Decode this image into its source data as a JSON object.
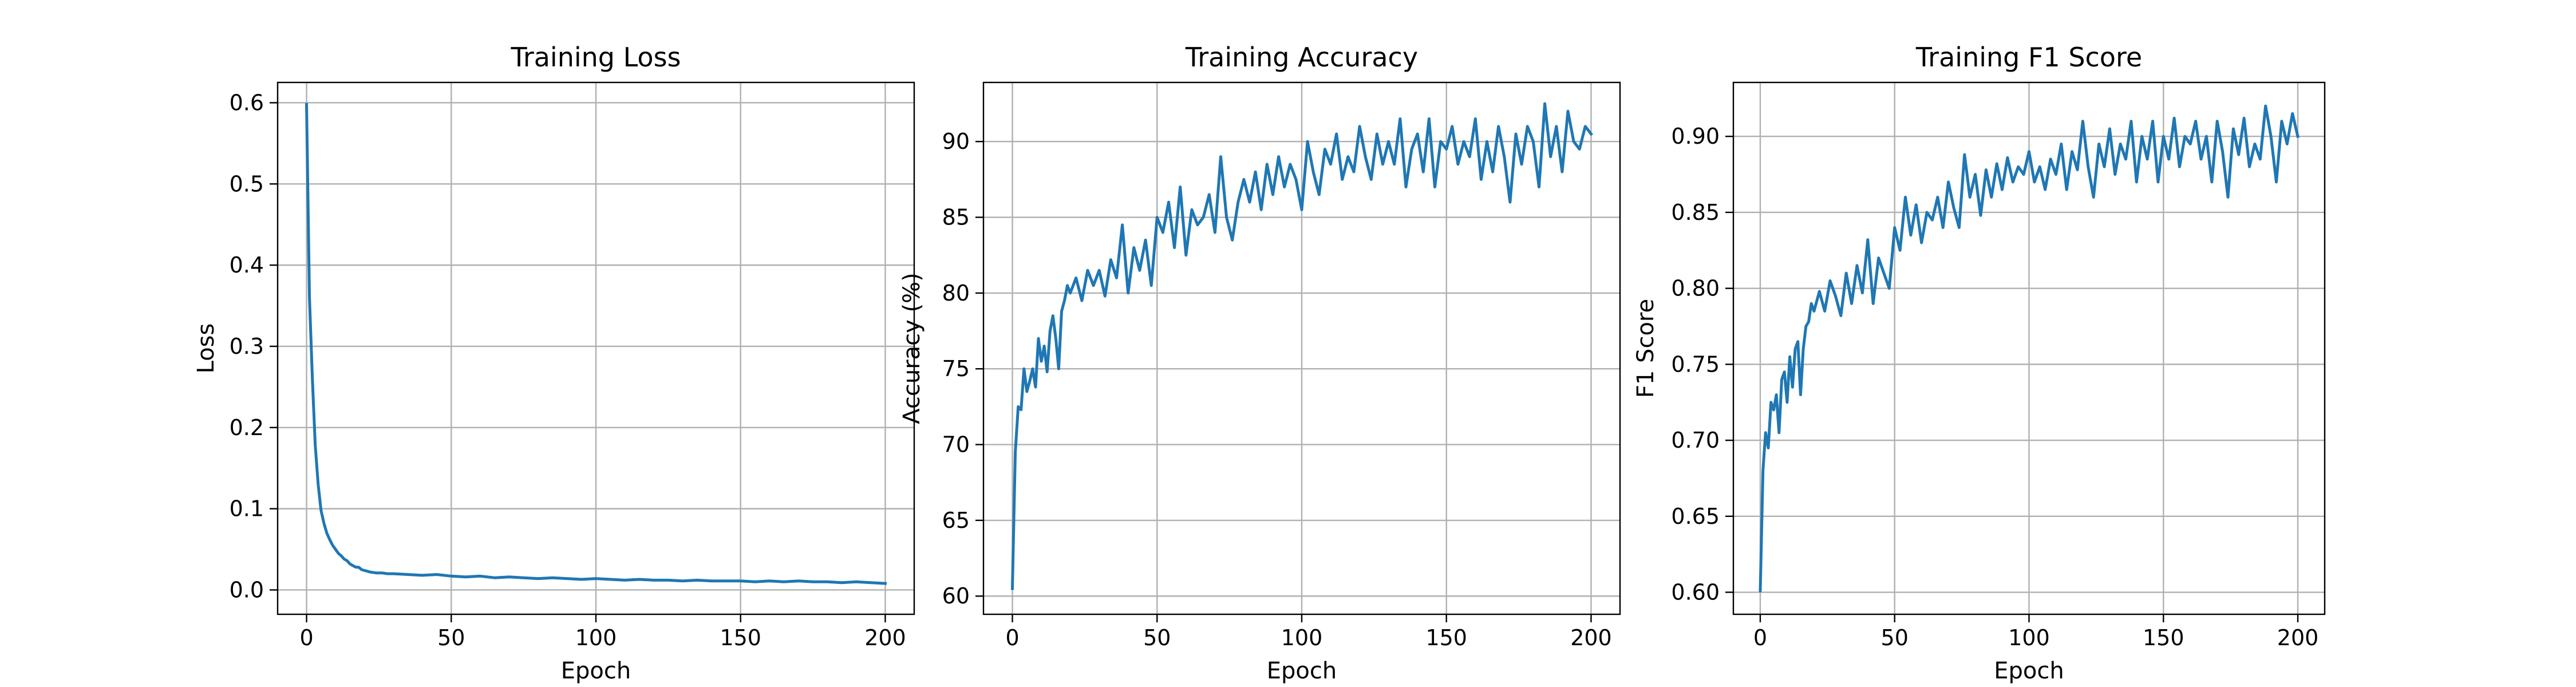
{
  "figure": {
    "background": "#ffffff",
    "line_color": "#1f77b4",
    "grid_color": "#b0b0b0"
  },
  "chart_data": [
    {
      "type": "line",
      "title": "Training Loss",
      "xlabel": "Epoch",
      "ylabel": "Loss",
      "xlim": [
        -10,
        210
      ],
      "ylim": [
        -0.03,
        0.625
      ],
      "xticks": [
        0,
        50,
        100,
        150,
        200
      ],
      "yticks": [
        0.0,
        0.1,
        0.2,
        0.3,
        0.4,
        0.5,
        0.6
      ],
      "ytick_decimals": 1,
      "grid": true,
      "series": [
        {
          "x": [
            0,
            1,
            2,
            3,
            4,
            5,
            6,
            7,
            8,
            9,
            10,
            11,
            12,
            13,
            14,
            15,
            16,
            17,
            18,
            19,
            20,
            22,
            24,
            26,
            28,
            30,
            35,
            40,
            45,
            50,
            55,
            60,
            65,
            70,
            75,
            80,
            85,
            90,
            95,
            100,
            105,
            110,
            115,
            120,
            125,
            130,
            135,
            140,
            145,
            150,
            155,
            160,
            165,
            170,
            175,
            180,
            185,
            190,
            195,
            200
          ],
          "y": [
            0.598,
            0.36,
            0.26,
            0.178,
            0.13,
            0.098,
            0.082,
            0.07,
            0.062,
            0.055,
            0.05,
            0.045,
            0.042,
            0.038,
            0.036,
            0.032,
            0.03,
            0.028,
            0.028,
            0.025,
            0.024,
            0.022,
            0.021,
            0.021,
            0.02,
            0.02,
            0.019,
            0.018,
            0.019,
            0.017,
            0.016,
            0.017,
            0.015,
            0.016,
            0.015,
            0.014,
            0.015,
            0.014,
            0.013,
            0.014,
            0.013,
            0.012,
            0.013,
            0.012,
            0.012,
            0.011,
            0.012,
            0.011,
            0.011,
            0.011,
            0.01,
            0.011,
            0.01,
            0.011,
            0.01,
            0.01,
            0.009,
            0.01,
            0.009,
            0.008
          ]
        }
      ]
    },
    {
      "type": "line",
      "title": "Training Accuracy",
      "xlabel": "Epoch",
      "ylabel": "Accuracy (%)",
      "xlim": [
        -10,
        210
      ],
      "ylim": [
        58.8,
        93.9
      ],
      "xticks": [
        0,
        50,
        100,
        150,
        200
      ],
      "yticks": [
        60,
        65,
        70,
        75,
        80,
        85,
        90
      ],
      "ytick_decimals": 0,
      "grid": true,
      "series": [
        {
          "x": [
            0,
            1,
            2,
            3,
            4,
            5,
            6,
            7,
            8,
            9,
            10,
            11,
            12,
            13,
            14,
            15,
            16,
            17,
            18,
            19,
            20,
            22,
            24,
            26,
            28,
            30,
            32,
            34,
            36,
            38,
            40,
            42,
            44,
            46,
            48,
            50,
            52,
            54,
            56,
            58,
            60,
            62,
            64,
            66,
            68,
            70,
            72,
            74,
            76,
            78,
            80,
            82,
            84,
            86,
            88,
            90,
            92,
            94,
            96,
            98,
            100,
            102,
            104,
            106,
            108,
            110,
            112,
            114,
            116,
            118,
            120,
            122,
            124,
            126,
            128,
            130,
            132,
            134,
            136,
            138,
            140,
            142,
            144,
            146,
            148,
            150,
            152,
            154,
            156,
            158,
            160,
            162,
            164,
            166,
            168,
            170,
            172,
            174,
            176,
            178,
            180,
            182,
            184,
            186,
            188,
            190,
            192,
            194,
            196,
            198,
            200
          ],
          "y": [
            60.5,
            69.5,
            72.5,
            72.3,
            75.0,
            73.5,
            74.2,
            75.0,
            73.8,
            77.0,
            75.5,
            76.5,
            74.8,
            77.5,
            78.5,
            77.0,
            75.0,
            78.8,
            79.5,
            80.5,
            80.0,
            81.0,
            79.5,
            81.5,
            80.5,
            81.5,
            79.8,
            82.2,
            81.0,
            84.5,
            80.0,
            83.0,
            81.5,
            83.5,
            80.5,
            85.0,
            84.0,
            86.0,
            83.0,
            87.0,
            82.5,
            85.5,
            84.5,
            85.0,
            86.5,
            84.0,
            89.0,
            85.0,
            83.5,
            86.0,
            87.5,
            86.0,
            88.0,
            85.5,
            88.5,
            86.5,
            89.0,
            87.0,
            88.5,
            87.5,
            85.5,
            90.0,
            88.0,
            86.5,
            89.5,
            88.5,
            90.5,
            87.5,
            89.0,
            88.0,
            91.0,
            89.0,
            87.5,
            90.5,
            88.5,
            90.0,
            88.5,
            91.5,
            87.0,
            89.5,
            90.5,
            88.0,
            91.5,
            87.0,
            90.0,
            89.5,
            91.0,
            88.5,
            90.0,
            89.0,
            91.5,
            87.5,
            90.0,
            88.0,
            91.0,
            89.0,
            86.0,
            90.5,
            88.5,
            91.0,
            90.0,
            87.0,
            92.5,
            89.0,
            91.0,
            88.0,
            92.0,
            90.0,
            89.5,
            91.0,
            90.5
          ]
        }
      ]
    },
    {
      "type": "line",
      "title": "Training F1 Score",
      "xlabel": "Epoch",
      "ylabel": "F1 Score",
      "xlim": [
        -10,
        210
      ],
      "ylim": [
        0.5855,
        0.9355
      ],
      "xticks": [
        0,
        50,
        100,
        150,
        200
      ],
      "yticks": [
        0.6,
        0.65,
        0.7,
        0.75,
        0.8,
        0.85,
        0.9
      ],
      "ytick_decimals": 2,
      "grid": true,
      "series": [
        {
          "x": [
            0,
            1,
            2,
            3,
            4,
            5,
            6,
            7,
            8,
            9,
            10,
            11,
            12,
            13,
            14,
            15,
            16,
            17,
            18,
            19,
            20,
            22,
            24,
            26,
            28,
            30,
            32,
            34,
            36,
            38,
            40,
            42,
            44,
            46,
            48,
            50,
            52,
            54,
            56,
            58,
            60,
            62,
            64,
            66,
            68,
            70,
            72,
            74,
            76,
            78,
            80,
            82,
            84,
            86,
            88,
            90,
            92,
            94,
            96,
            98,
            100,
            102,
            104,
            106,
            108,
            110,
            112,
            114,
            116,
            118,
            120,
            122,
            124,
            126,
            128,
            130,
            132,
            134,
            136,
            138,
            140,
            142,
            144,
            146,
            148,
            150,
            152,
            154,
            156,
            158,
            160,
            162,
            164,
            166,
            168,
            170,
            172,
            174,
            176,
            178,
            180,
            182,
            184,
            186,
            188,
            190,
            192,
            194,
            196,
            198,
            200
          ],
          "y": [
            0.601,
            0.68,
            0.705,
            0.695,
            0.725,
            0.72,
            0.73,
            0.705,
            0.74,
            0.745,
            0.725,
            0.755,
            0.735,
            0.76,
            0.765,
            0.73,
            0.76,
            0.775,
            0.778,
            0.79,
            0.785,
            0.798,
            0.785,
            0.805,
            0.795,
            0.782,
            0.81,
            0.79,
            0.815,
            0.797,
            0.832,
            0.79,
            0.82,
            0.81,
            0.8,
            0.84,
            0.825,
            0.86,
            0.835,
            0.855,
            0.83,
            0.85,
            0.845,
            0.86,
            0.84,
            0.87,
            0.853,
            0.84,
            0.888,
            0.86,
            0.875,
            0.848,
            0.878,
            0.86,
            0.882,
            0.865,
            0.886,
            0.87,
            0.88,
            0.875,
            0.89,
            0.87,
            0.88,
            0.865,
            0.885,
            0.875,
            0.895,
            0.865,
            0.89,
            0.878,
            0.91,
            0.88,
            0.86,
            0.895,
            0.88,
            0.905,
            0.875,
            0.895,
            0.885,
            0.91,
            0.87,
            0.9,
            0.885,
            0.91,
            0.87,
            0.9,
            0.885,
            0.912,
            0.88,
            0.9,
            0.895,
            0.91,
            0.885,
            0.9,
            0.87,
            0.91,
            0.89,
            0.86,
            0.905,
            0.888,
            0.912,
            0.88,
            0.895,
            0.885,
            0.92,
            0.9,
            0.87,
            0.91,
            0.895,
            0.915,
            0.9
          ]
        }
      ]
    }
  ]
}
